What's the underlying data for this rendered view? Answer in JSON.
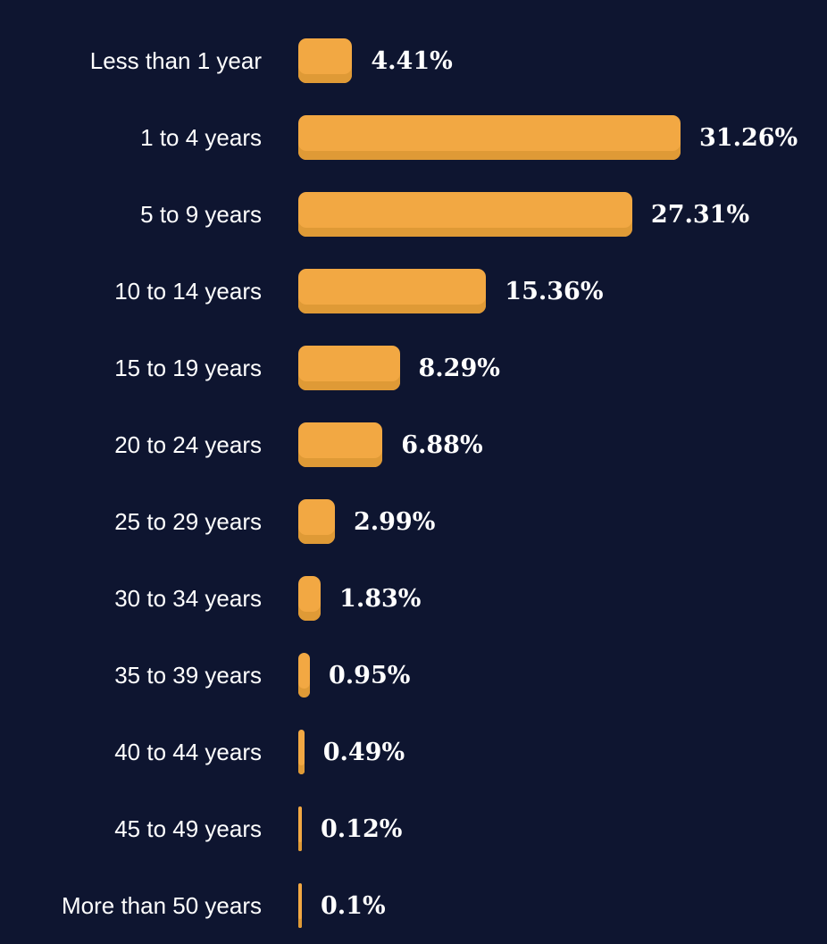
{
  "chart_data": {
    "type": "bar",
    "orientation": "horizontal",
    "title": "",
    "xlabel": "",
    "ylabel": "",
    "grid": false,
    "legend": false,
    "xlim": [
      0,
      31.26
    ],
    "categories": [
      "Less than 1 year",
      "1 to 4 years",
      "5 to 9 years",
      "10 to 14 years",
      "15 to 19 years",
      "20 to 24 years",
      "25 to 29 years",
      "30 to 34 years",
      "35 to 39 years",
      "40 to 44 years",
      "45 to 49 years",
      "More than 50 years"
    ],
    "values": [
      4.41,
      31.26,
      27.31,
      15.36,
      8.29,
      6.88,
      2.99,
      1.83,
      0.95,
      0.49,
      0.12,
      0.1
    ],
    "value_labels": [
      "4.41%",
      "31.26%",
      "27.31%",
      "15.36%",
      "8.29%",
      "6.88%",
      "2.99%",
      "1.83%",
      "0.95%",
      "0.49%",
      "0.12%",
      "0.1%"
    ]
  },
  "colors": {
    "background": "#0e1530",
    "bar": "#f2a843",
    "bar_shadow": "#df9a36",
    "text": "#ffffff"
  }
}
